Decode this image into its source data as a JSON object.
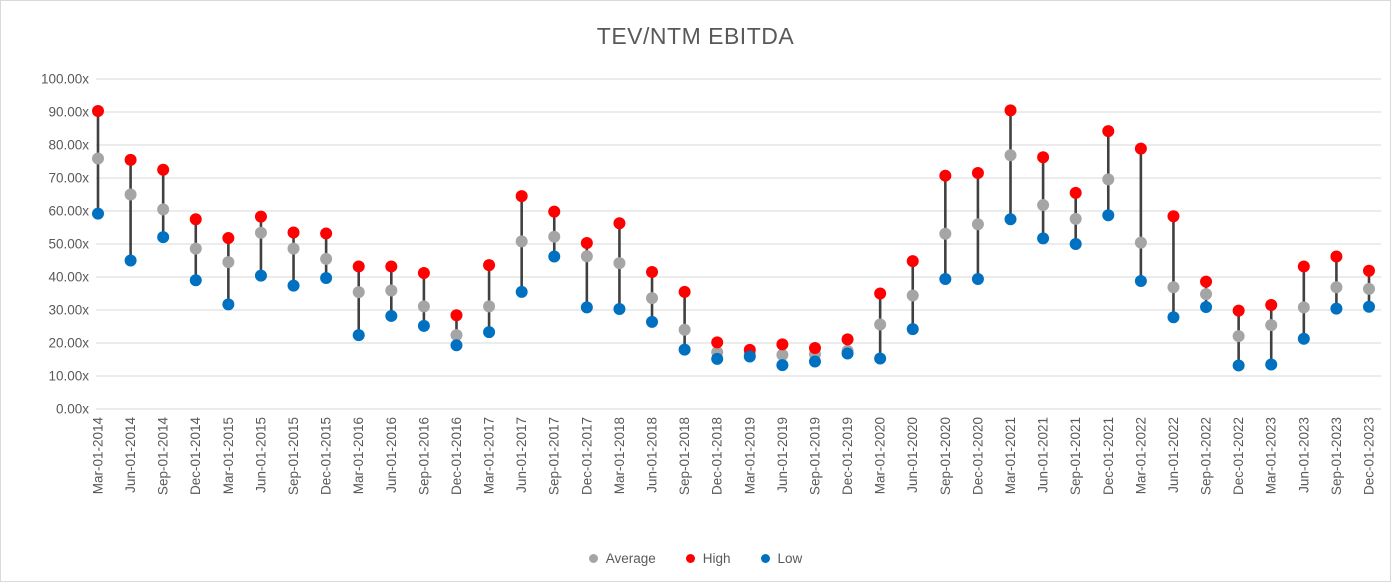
{
  "chart_data": {
    "type": "scatter",
    "subtype": "high-low-average",
    "title": "TEV/NTM EBITDA",
    "xlabel": "",
    "ylabel": "",
    "ylim": [
      0,
      100
    ],
    "grid": true,
    "legend_position": "bottom",
    "y_tick_suffix": "x",
    "y_ticks": [
      {
        "value": 0,
        "label": "0.00x"
      },
      {
        "value": 10,
        "label": "10.00x"
      },
      {
        "value": 20,
        "label": "20.00x"
      },
      {
        "value": 30,
        "label": "30.00x"
      },
      {
        "value": 40,
        "label": "40.00x"
      },
      {
        "value": 50,
        "label": "50.00x"
      },
      {
        "value": 60,
        "label": "60.00x"
      },
      {
        "value": 70,
        "label": "70.00x"
      },
      {
        "value": 80,
        "label": "80.00x"
      },
      {
        "value": 90,
        "label": "90.00x"
      },
      {
        "value": 100,
        "label": "100.00x"
      }
    ],
    "categories": [
      "Mar-01-2014",
      "Jun-01-2014",
      "Sep-01-2014",
      "Dec-01-2014",
      "Mar-01-2015",
      "Jun-01-2015",
      "Sep-01-2015",
      "Dec-01-2015",
      "Mar-01-2016",
      "Jun-01-2016",
      "Sep-01-2016",
      "Dec-01-2016",
      "Mar-01-2017",
      "Jun-01-2017",
      "Sep-01-2017",
      "Dec-01-2017",
      "Mar-01-2018",
      "Jun-01-2018",
      "Sep-01-2018",
      "Dec-01-2018",
      "Mar-01-2019",
      "Jun-01-2019",
      "Sep-01-2019",
      "Dec-01-2019",
      "Mar-01-2020",
      "Jun-01-2020",
      "Sep-01-2020",
      "Dec-01-2020",
      "Mar-01-2021",
      "Jun-01-2021",
      "Sep-01-2021",
      "Dec-01-2021",
      "Mar-01-2022",
      "Jun-01-2022",
      "Sep-01-2022",
      "Dec-01-2022",
      "Mar-01-2023",
      "Jun-01-2023",
      "Sep-01-2023",
      "Dec-01-2023"
    ],
    "series": [
      {
        "name": "Average",
        "color": "#A5A5A5",
        "values": [
          75.9,
          65.0,
          60.5,
          48.6,
          44.5,
          53.4,
          48.6,
          45.5,
          35.4,
          35.9,
          31.1,
          22.4,
          31.1,
          50.8,
          52.2,
          46.3,
          44.2,
          33.6,
          24.0,
          17.2,
          16.8,
          16.4,
          16.6,
          17.6,
          25.6,
          34.4,
          53.1,
          56.0,
          76.9,
          61.8,
          57.6,
          69.6,
          50.4,
          36.9,
          34.8,
          22.1,
          25.4,
          30.8,
          36.9,
          36.4
        ]
      },
      {
        "name": "High",
        "color": "#FF0000",
        "values": [
          90.3,
          75.5,
          72.5,
          57.5,
          51.8,
          58.3,
          53.5,
          53.2,
          43.2,
          43.2,
          41.2,
          28.4,
          43.6,
          64.5,
          59.8,
          50.3,
          56.3,
          41.5,
          35.5,
          20.2,
          17.9,
          19.6,
          18.5,
          21.1,
          35.0,
          44.8,
          70.7,
          71.5,
          90.5,
          76.3,
          65.5,
          84.2,
          78.9,
          58.4,
          38.6,
          29.8,
          31.5,
          43.2,
          46.2,
          41.9
        ]
      },
      {
        "name": "Low",
        "color": "#0070C0",
        "values": [
          59.2,
          45.0,
          52.1,
          39.0,
          31.7,
          40.4,
          37.4,
          39.7,
          22.4,
          28.2,
          25.2,
          19.3,
          23.3,
          35.5,
          46.2,
          30.8,
          30.3,
          26.4,
          18.0,
          15.2,
          15.9,
          13.3,
          14.4,
          16.8,
          15.3,
          24.2,
          39.4,
          39.4,
          57.5,
          51.7,
          50.0,
          58.7,
          38.8,
          27.8,
          30.9,
          13.2,
          13.5,
          21.3,
          30.4,
          31.0
        ]
      }
    ],
    "hilo_line_color": "#404040",
    "gridline_color": "#D9D9D9",
    "text_color": "#595959"
  }
}
